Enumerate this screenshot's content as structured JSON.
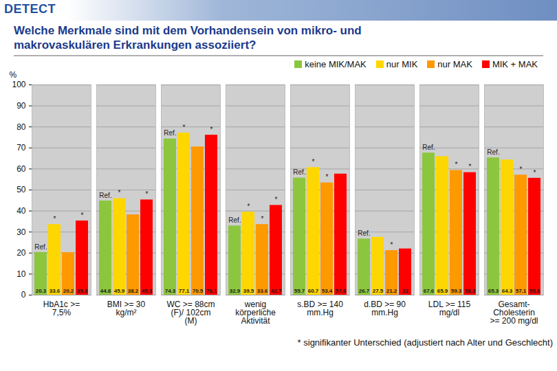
{
  "header": {
    "logo": "DETECT"
  },
  "chart_data": {
    "type": "bar",
    "title": "Welche Merkmale sind mit dem Vorhandensein von mikro- und\nmakrovaskulären Erkrankungen assoziiert?",
    "y_label": "%",
    "footnote": "* signifikanter Unterschied (adjustiert nach Alter und Geschlecht)",
    "categories": [
      "HbA1c >=\n7,5%",
      "BMI >= 30\nkg/m²",
      "WC >= 88cm\n(F)/ 102cm\n(M)",
      "wenig\nkörperliche\nAktivität",
      "s.BD >= 140\nmm.Hg",
      "d.BD >= 90\nmm.Hg",
      "LDL >= 115\nmg/dl",
      "Gesamt-\nCholesterin\n>= 200 mg/dl"
    ],
    "series": [
      {
        "name": "keine MIK/MAK",
        "color": "#8cc63e",
        "values": [
          20.3,
          44.8,
          74.3,
          32.9,
          55.7,
          26.7,
          67.6,
          65.3
        ],
        "annotations": [
          "Ref.",
          "Ref.",
          "Ref.",
          "Ref.",
          "Ref.",
          "Ref.",
          "Ref.",
          "Ref."
        ]
      },
      {
        "name": "nur MIK",
        "color": "#ffd700",
        "values": [
          33.6,
          45.9,
          77.1,
          39.5,
          60.7,
          27.5,
          65.9,
          64.3
        ],
        "annotations": [
          "*",
          "*",
          "*",
          "*",
          "*",
          null,
          null,
          null
        ]
      },
      {
        "name": "nur MAK",
        "color": "#ff9900",
        "values": [
          20.2,
          38.2,
          70.5,
          33.6,
          53.4,
          21.2,
          59.3,
          57.1
        ],
        "annotations": [
          null,
          null,
          null,
          "*",
          "*",
          "*",
          "*",
          "*"
        ]
      },
      {
        "name": "MIK + MAK",
        "color": "#ff0000",
        "values": [
          35.3,
          45.3,
          76.1,
          42.7,
          57.6,
          22,
          58.3,
          55.6
        ],
        "annotations": [
          "*",
          "*",
          "*",
          "*",
          null,
          null,
          "*",
          "*"
        ]
      }
    ],
    "ylim": [
      0,
      100
    ],
    "yticks": [
      0,
      10,
      20,
      30,
      40,
      50,
      60,
      70,
      80,
      90,
      100
    ],
    "grid": true,
    "data_labels": true,
    "legend": "top-right"
  }
}
